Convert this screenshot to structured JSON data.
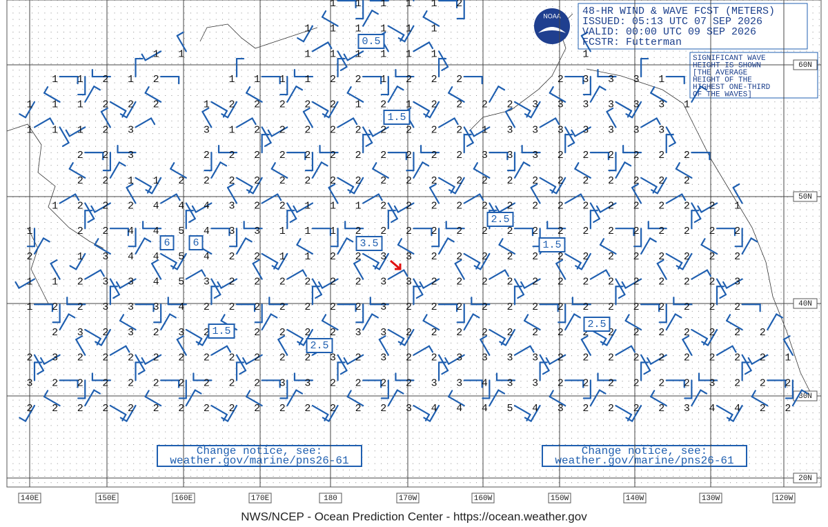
{
  "header": {
    "lines": [
      "48-HR WIND & WAVE FCST (METERS)",
      "ISSUED: 05:13 UTC 07 SEP 2026",
      "VALID:  00:00 UTC 09 SEP 2026",
      "FCSTR:  Futterman"
    ],
    "logo": "NOAA"
  },
  "note": {
    "lines": [
      "SIGNIFICANT WAVE",
      "HEIGHT IS SHOWN",
      "[THE AVERAGE",
      "HEIGHT OF THE",
      "HIGHEST ONE-THIRD",
      "OF THE WAVES]"
    ]
  },
  "latitude_labels": [
    "60N",
    "50N",
    "40N",
    "30N",
    "20N"
  ],
  "longitude_labels": [
    "140E",
    "150E",
    "160E",
    "170E",
    "180",
    "170W",
    "160W",
    "150W",
    "140W",
    "130W",
    "120W"
  ],
  "contour_labels": [
    "0.5",
    "1.5",
    "6",
    "6",
    "3.5",
    "2.5",
    "1.5",
    "1.5",
    "2.5",
    "2.5"
  ],
  "notices": [
    {
      "line1": "Change notice, see:",
      "line2": "weather.gov/marine/pns26-61"
    },
    {
      "line1": "Change notice, see:",
      "line2": "weather.gov/marine/pns26-61"
    }
  ],
  "footer": "NWS/NCEP - Ocean Prediction Center - https://ocean.weather.gov",
  "wave_heights": {
    "rows": [
      [
        null,
        null,
        null,
        null,
        null,
        null,
        null,
        null,
        null,
        null,
        null,
        null,
        1,
        1,
        1,
        1,
        1,
        2,
        null,
        null,
        null,
        null,
        null,
        null,
        null,
        null,
        null,
        null,
        null,
        null,
        null
      ],
      [
        null,
        null,
        null,
        null,
        null,
        null,
        null,
        null,
        null,
        null,
        null,
        1,
        1,
        1,
        1,
        1,
        1,
        null,
        null,
        null,
        null,
        null,
        null,
        null,
        null,
        null,
        null,
        null,
        null,
        null,
        null
      ],
      [
        null,
        null,
        null,
        null,
        null,
        1,
        1,
        null,
        null,
        null,
        null,
        1,
        1,
        1,
        1,
        1,
        1,
        null,
        null,
        null,
        null,
        null,
        1,
        null,
        null,
        null,
        null,
        null,
        null,
        null,
        null
      ],
      [
        null,
        1,
        1,
        2,
        1,
        2,
        null,
        null,
        1,
        1,
        1,
        1,
        2,
        2,
        1,
        2,
        2,
        2,
        null,
        null,
        null,
        2,
        3,
        3,
        3,
        1,
        null,
        null,
        null,
        null,
        null
      ],
      [
        1,
        1,
        1,
        2,
        2,
        2,
        null,
        1,
        2,
        2,
        2,
        2,
        2,
        1,
        2,
        1,
        2,
        2,
        2,
        2,
        3,
        3,
        3,
        3,
        3,
        3,
        1,
        null,
        null,
        null,
        null
      ],
      [
        1,
        1,
        1,
        2,
        3,
        null,
        null,
        3,
        1,
        2,
        2,
        2,
        2,
        2,
        2,
        2,
        2,
        2,
        1,
        3,
        3,
        3,
        3,
        3,
        3,
        3,
        null,
        null,
        null,
        null,
        null
      ],
      [
        null,
        null,
        2,
        2,
        3,
        null,
        null,
        2,
        2,
        2,
        2,
        2,
        2,
        2,
        2,
        2,
        2,
        2,
        3,
        3,
        3,
        2,
        2,
        2,
        2,
        2,
        2,
        null,
        null,
        null,
        null
      ],
      [
        null,
        null,
        2,
        2,
        1,
        1,
        2,
        2,
        2,
        2,
        2,
        2,
        2,
        2,
        2,
        2,
        2,
        2,
        2,
        2,
        2,
        2,
        2,
        2,
        2,
        2,
        2,
        null,
        null,
        null,
        null
      ],
      [
        null,
        1,
        2,
        2,
        2,
        4,
        4,
        4,
        3,
        2,
        2,
        1,
        1,
        1,
        2,
        2,
        2,
        2,
        2,
        2,
        2,
        2,
        2,
        2,
        2,
        2,
        2,
        2,
        1,
        null,
        null
      ],
      [
        1,
        null,
        2,
        2,
        4,
        4,
        5,
        4,
        3,
        3,
        1,
        1,
        1,
        2,
        2,
        2,
        2,
        2,
        2,
        2,
        2,
        2,
        2,
        2,
        2,
        2,
        2,
        2,
        2,
        null,
        null
      ],
      [
        2,
        null,
        1,
        3,
        4,
        4,
        5,
        4,
        2,
        2,
        1,
        1,
        2,
        2,
        3,
        3,
        2,
        2,
        2,
        2,
        2,
        2,
        2,
        2,
        2,
        2,
        2,
        2,
        2,
        null,
        null
      ],
      [
        1,
        1,
        2,
        3,
        3,
        4,
        5,
        3,
        2,
        2,
        2,
        2,
        2,
        2,
        3,
        3,
        2,
        2,
        2,
        2,
        2,
        2,
        2,
        2,
        2,
        2,
        2,
        2,
        3,
        null,
        null
      ],
      [
        1,
        2,
        2,
        3,
        3,
        3,
        4,
        2,
        2,
        2,
        2,
        2,
        2,
        2,
        3,
        2,
        2,
        2,
        2,
        2,
        2,
        2,
        2,
        2,
        2,
        2,
        2,
        2,
        2,
        null,
        null
      ],
      [
        null,
        2,
        3,
        2,
        3,
        2,
        3,
        2,
        2,
        2,
        2,
        2,
        2,
        3,
        3,
        2,
        2,
        2,
        2,
        2,
        2,
        2,
        2,
        2,
        2,
        2,
        2,
        2,
        2,
        2,
        null
      ],
      [
        2,
        3,
        2,
        2,
        2,
        2,
        2,
        2,
        2,
        2,
        2,
        2,
        3,
        2,
        3,
        2,
        2,
        3,
        3,
        3,
        3,
        2,
        2,
        2,
        2,
        2,
        2,
        2,
        2,
        2,
        1
      ],
      [
        3,
        2,
        2,
        2,
        2,
        2,
        2,
        2,
        2,
        2,
        3,
        3,
        2,
        2,
        2,
        2,
        3,
        3,
        4,
        3,
        3,
        2,
        2,
        2,
        2,
        2,
        2,
        3,
        2,
        2,
        2
      ],
      [
        2,
        2,
        2,
        2,
        2,
        2,
        2,
        2,
        2,
        2,
        2,
        2,
        2,
        2,
        2,
        3,
        4,
        4,
        4,
        5,
        4,
        3,
        2,
        2,
        2,
        2,
        3,
        4,
        4,
        2,
        2
      ]
    ]
  }
}
